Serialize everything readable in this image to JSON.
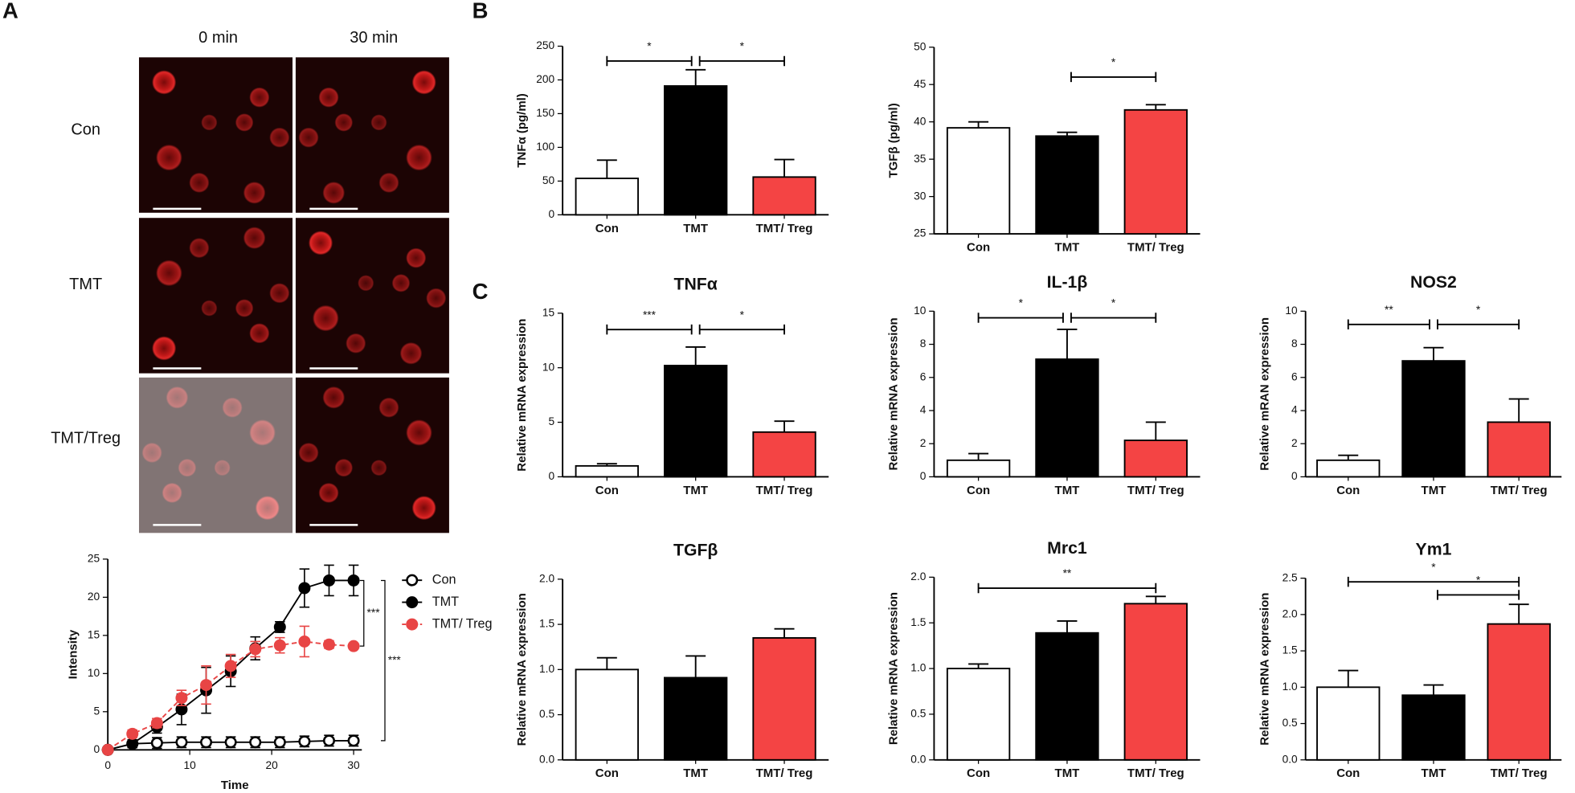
{
  "panel_labels": [
    "A",
    "B",
    "C"
  ],
  "micrographs": {
    "columns": [
      "0 min",
      "30 min"
    ],
    "rows": [
      "Con",
      "TMT",
      "TMT/Treg"
    ]
  },
  "chart_data": [
    {
      "type": "line",
      "xlabel": "Time",
      "ylabel": "Intensity",
      "x": [
        0,
        3,
        6,
        9,
        12,
        15,
        18,
        21,
        24,
        27,
        30
      ],
      "xlim": [
        0,
        31
      ],
      "xticks": [
        0,
        10,
        20,
        30
      ],
      "ylim": [
        0,
        25
      ],
      "yticks": [
        0,
        5,
        10,
        15,
        20,
        25
      ],
      "series": [
        {
          "name": "Con",
          "color": "#000000",
          "marker_fill": "#ffffff",
          "dashed": false,
          "values": [
            0,
            0.8,
            0.9,
            1,
            1,
            1,
            1,
            1,
            1.1,
            1.2,
            1.2
          ],
          "errors": [
            0.2,
            0.5,
            0.7,
            0.7,
            0.7,
            0.7,
            0.7,
            0.7,
            0.7,
            0.7,
            0.7
          ]
        },
        {
          "name": "TMT",
          "color": "#000000",
          "marker_fill": "#000000",
          "dashed": false,
          "values": [
            0,
            0.8,
            3,
            5.3,
            7.8,
            10.3,
            13.3,
            16.1,
            21.2,
            22.2,
            22.2
          ],
          "errors": [
            0.2,
            0.5,
            0.8,
            2,
            3,
            2,
            1.5,
            0.7,
            2.5,
            2,
            2
          ]
        },
        {
          "name": "TMT/ Treg",
          "color": "#e84545",
          "marker_fill": "#e84545",
          "dashed": true,
          "values": [
            0,
            2.1,
            3.5,
            6.8,
            8.5,
            11,
            13.2,
            13.7,
            14.2,
            13.8,
            13.6
          ],
          "errors": [
            0.2,
            0.5,
            0.6,
            1,
            2.5,
            1.5,
            1,
            1,
            2,
            0.5,
            0.3
          ]
        }
      ],
      "annotations": [
        {
          "label": "***",
          "span": [
            22.2,
            13.6
          ]
        },
        {
          "label": "***",
          "span": [
            22.2,
            1.2
          ]
        }
      ]
    },
    {
      "type": "bar",
      "ylabel": "TNFα (pg/ml)",
      "categories": [
        "Con",
        "TMT",
        "TMT/ Treg"
      ],
      "values": [
        54,
        191,
        56
      ],
      "errors": [
        27,
        24,
        26
      ],
      "colors": [
        "#ffffff",
        "#000000",
        "#f44444"
      ],
      "ylim": [
        0,
        250
      ],
      "yticks": [
        0,
        50,
        100,
        150,
        200,
        250
      ],
      "brackets": [
        {
          "label": "*",
          "pair": [
            0,
            1
          ],
          "y": 228
        },
        {
          "label": "*",
          "pair": [
            1,
            2
          ],
          "y": 228
        }
      ]
    },
    {
      "type": "bar",
      "ylabel": "TGFβ  (pg/ml)",
      "categories": [
        "Con",
        "TMT",
        "TMT/ Treg"
      ],
      "values": [
        39.2,
        38.1,
        41.6
      ],
      "errors": [
        0.8,
        0.5,
        0.7
      ],
      "colors": [
        "#ffffff",
        "#000000",
        "#f44444"
      ],
      "ylim": [
        25,
        50
      ],
      "yticks": [
        25,
        30,
        35,
        40,
        45,
        50
      ],
      "brackets": [
        {
          "label": "*",
          "pair": [
            1,
            2
          ],
          "y": 46
        }
      ]
    },
    {
      "type": "bar",
      "title": "TNFα",
      "ylabel": "Relative mRNA expression",
      "categories": [
        "Con",
        "TMT",
        "TMT/ Treg"
      ],
      "values": [
        1,
        10.2,
        4.1
      ],
      "errors": [
        0.2,
        1.7,
        1
      ],
      "colors": [
        "#ffffff",
        "#000000",
        "#f44444"
      ],
      "ylim": [
        0,
        15
      ],
      "yticks": [
        0,
        5,
        10,
        15
      ],
      "brackets": [
        {
          "label": "***",
          "pair": [
            0,
            1
          ],
          "y": 13.5
        },
        {
          "label": "*",
          "pair": [
            1,
            2
          ],
          "y": 13.5
        }
      ]
    },
    {
      "type": "bar",
      "title": "IL-1β",
      "ylabel": "Relative mRNA expression",
      "categories": [
        "Con",
        "TMT",
        "TMT/ Treg"
      ],
      "values": [
        1,
        7.1,
        2.2
      ],
      "errors": [
        0.4,
        1.8,
        1.1
      ],
      "colors": [
        "#ffffff",
        "#000000",
        "#f44444"
      ],
      "ylim": [
        0,
        10
      ],
      "yticks": [
        0,
        2,
        4,
        6,
        8,
        10
      ],
      "brackets": [
        {
          "label": "*",
          "pair": [
            0,
            1
          ],
          "y": 9.6
        },
        {
          "label": "*",
          "pair": [
            1,
            2
          ],
          "y": 9.6
        }
      ]
    },
    {
      "type": "bar",
      "title": "NOS2",
      "ylabel": "Relative mRAN expression",
      "categories": [
        "Con",
        "TMT",
        "TMT/ Treg"
      ],
      "values": [
        1,
        7,
        3.3
      ],
      "errors": [
        0.3,
        0.8,
        1.4
      ],
      "colors": [
        "#ffffff",
        "#000000",
        "#f44444"
      ],
      "ylim": [
        0,
        10
      ],
      "yticks": [
        0,
        2,
        4,
        6,
        8,
        10
      ],
      "brackets": [
        {
          "label": "**",
          "pair": [
            0,
            1
          ],
          "y": 9.2
        },
        {
          "label": "*",
          "pair": [
            1,
            2
          ],
          "y": 9.2
        }
      ]
    },
    {
      "type": "bar",
      "title": "TGFβ",
      "ylabel": "Relative mRNA expression",
      "categories": [
        "Con",
        "TMT",
        "TMT/ Treg"
      ],
      "values": [
        1,
        0.91,
        1.35
      ],
      "errors": [
        0.13,
        0.24,
        0.1
      ],
      "colors": [
        "#ffffff",
        "#000000",
        "#f44444"
      ],
      "ylim": [
        0,
        2
      ],
      "yticks": [
        {
          "value": 0,
          "label": "0.0"
        },
        0.5,
        {
          "value": 1,
          "label": "1.0"
        },
        1.5,
        {
          "value": 2,
          "label": "2.0"
        }
      ],
      "brackets": []
    },
    {
      "type": "bar",
      "title": "Mrc1",
      "ylabel": "Relative mRNA expression",
      "categories": [
        "Con",
        "TMT",
        "TMT/ Treg"
      ],
      "values": [
        1,
        1.39,
        1.71
      ],
      "errors": [
        0.05,
        0.13,
        0.08
      ],
      "colors": [
        "#ffffff",
        "#000000",
        "#f44444"
      ],
      "ylim": [
        0,
        2
      ],
      "yticks": [
        {
          "value": 0,
          "label": "0.0"
        },
        0.5,
        {
          "value": 1,
          "label": "1.0"
        },
        1.5,
        {
          "value": 2,
          "label": "2.0"
        }
      ],
      "brackets": [
        {
          "label": "**",
          "pair": [
            0,
            2
          ],
          "y": 1.88
        }
      ]
    },
    {
      "type": "bar",
      "title": "Ym1",
      "ylabel": "Relative mRNA expression",
      "categories": [
        "Con",
        "TMT",
        "TMT/ Treg"
      ],
      "values": [
        1,
        0.89,
        1.87
      ],
      "errors": [
        0.23,
        0.14,
        0.27
      ],
      "colors": [
        "#ffffff",
        "#000000",
        "#f44444"
      ],
      "ylim": [
        0,
        2.5
      ],
      "yticks": [
        {
          "value": 0,
          "label": "0.0"
        },
        0.5,
        {
          "value": 1,
          "label": "1.0"
        },
        1.5,
        {
          "value": 2,
          "label": "2.0"
        },
        2.5
      ],
      "brackets": [
        {
          "label": "*",
          "pair": [
            0,
            2
          ],
          "y": 2.45
        },
        {
          "label": "*",
          "pair": [
            1,
            2
          ],
          "y": 2.27
        }
      ]
    }
  ]
}
